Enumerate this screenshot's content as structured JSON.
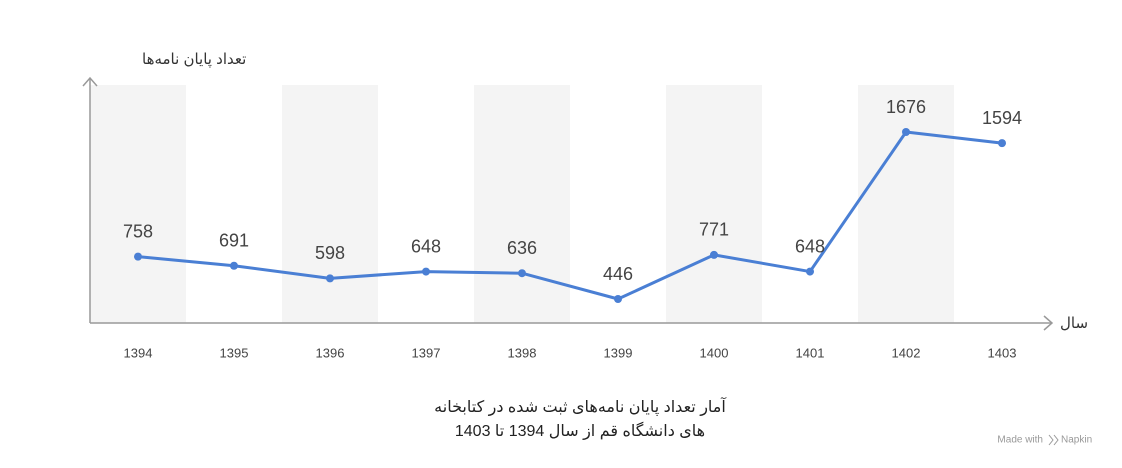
{
  "chart_data": {
    "type": "line",
    "y_label": "تعداد پایان نامه‌ها",
    "x_label": "سال",
    "categories": [
      "1394",
      "1395",
      "1396",
      "1397",
      "1398",
      "1399",
      "1400",
      "1401",
      "1402",
      "1403"
    ],
    "values": [
      758,
      691,
      598,
      648,
      636,
      446,
      771,
      648,
      1676,
      1594
    ],
    "color": "#4a7fd4",
    "caption": [
      "آمار تعداد پایان نامه‌های ثبت شده در کتابخانه",
      "های دانشگاه قم  از سال 1394 تا 1403"
    ],
    "watermark": [
      "Made with",
      "Napkin"
    ]
  }
}
